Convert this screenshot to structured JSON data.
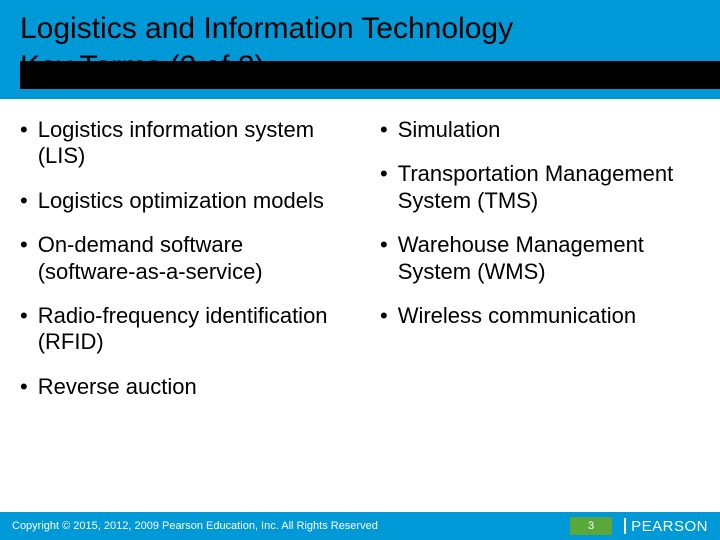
{
  "header": {
    "title_line1": "Logistics and Information Technology",
    "title_line2": "Key Terms (2 of 2)"
  },
  "columns": {
    "left": [
      "Logistics information system (LIS)",
      "Logistics optimization models",
      "On-demand software (software-as-a-service)",
      "Radio-frequency identification (RFID)",
      "Reverse auction"
    ],
    "right": [
      "Simulation",
      "Transportation Management System (TMS)",
      "Warehouse Management System (WMS)",
      "Wireless communication"
    ]
  },
  "footer": {
    "copyright": "Copyright © 2015, 2012, 2009 Pearson Education, Inc. All Rights Reserved",
    "page_number": "3",
    "logo_text": "PEARSON"
  },
  "colors": {
    "header_bg": "#0099d8",
    "footer_bg": "#0099d8",
    "page_num_bg": "#5aa83a",
    "text": "#000000",
    "footer_text": "#ffffff"
  }
}
